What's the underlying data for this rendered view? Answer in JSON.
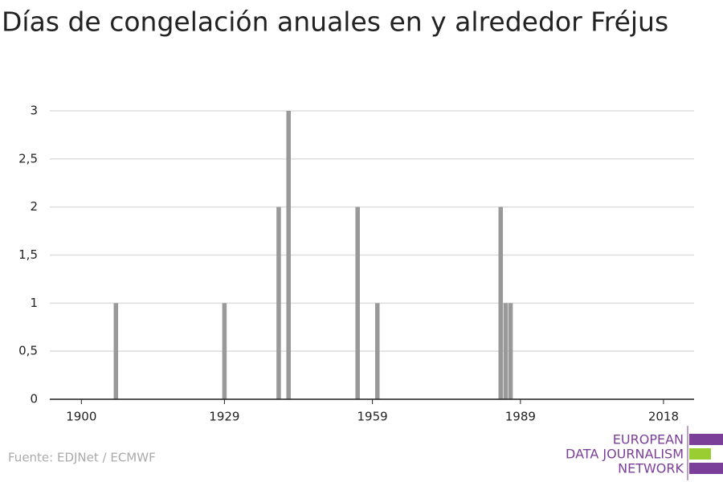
{
  "chart_data": {
    "type": "bar",
    "title": "Días de congelación anuales en y alrededor Fréjus",
    "x": [
      1907,
      1929,
      1940,
      1942,
      1956,
      1960,
      1985,
      1986,
      1987
    ],
    "values": [
      1,
      1,
      2,
      3,
      2,
      1,
      2,
      1,
      1
    ],
    "color": "#999999",
    "xlim": [
      1893.6,
      2024.2
    ],
    "xticks": [
      1900,
      1929,
      1959,
      1989,
      2018
    ],
    "ylim": [
      0,
      3
    ],
    "yticks": [
      0,
      {
        "value": 0.5,
        "label": "0,5"
      },
      1,
      {
        "value": 1.5,
        "label": "1,5"
      },
      2,
      {
        "value": 2.5,
        "label": "2,5"
      },
      3
    ],
    "grid": true,
    "source": "Fuente: EDJNet / ECMWF"
  },
  "logo": {
    "lines": [
      "EUROPEAN",
      "DATA JOURNALISM",
      "NETWORK"
    ]
  }
}
